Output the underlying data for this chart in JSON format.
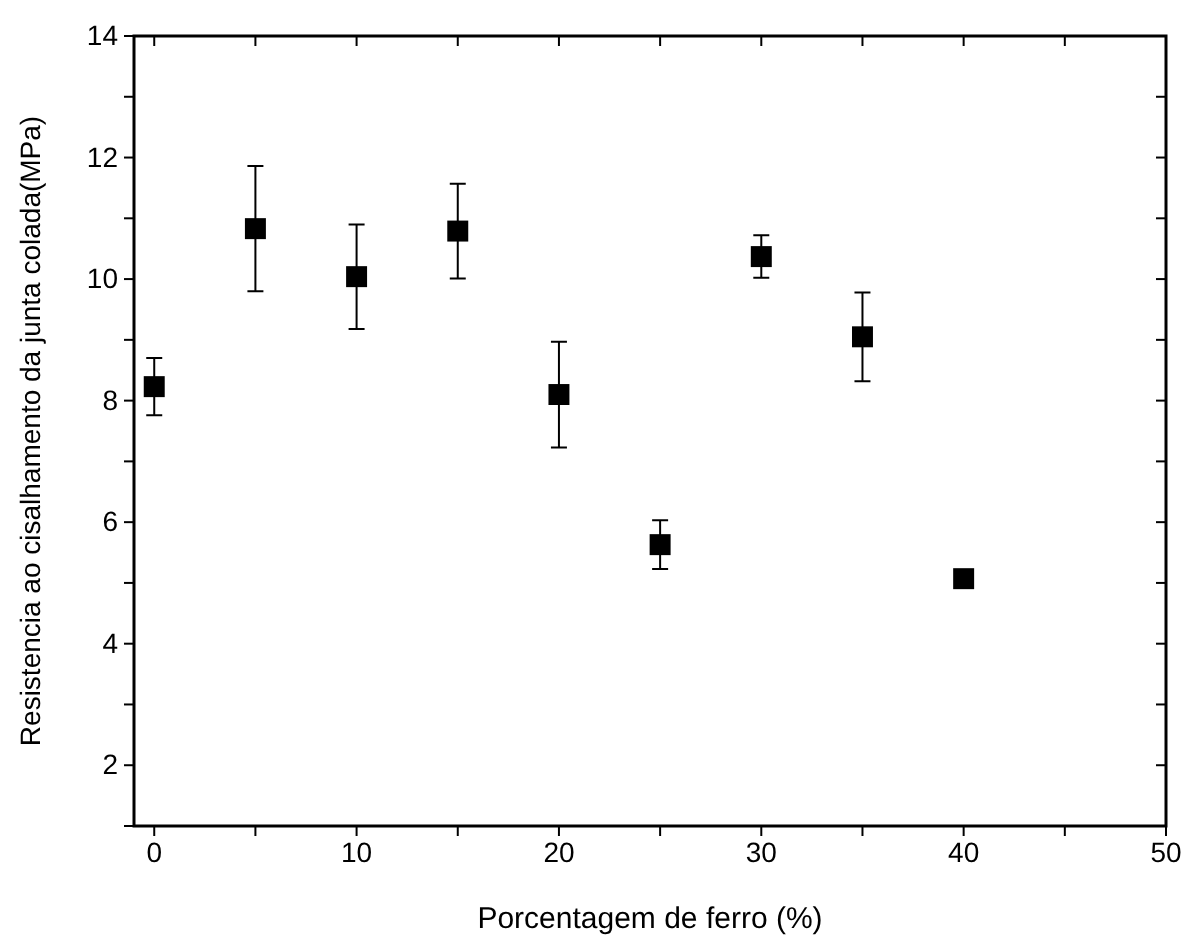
{
  "chart_data": {
    "type": "scatter",
    "xlabel": "Porcentagem de ferro (%)",
    "ylabel": "Resistencia ao cisalhamento da junta colada(MPa)",
    "x": [
      0,
      5,
      10,
      15,
      20,
      25,
      30,
      35,
      40
    ],
    "series": [
      {
        "color": "#000000",
        "values": [
          8.23,
          10.83,
          10.04,
          10.79,
          8.1,
          5.63,
          10.37,
          9.05,
          5.07
        ],
        "errors": [
          0.47,
          1.03,
          0.86,
          0.78,
          0.87,
          0.4,
          0.35,
          0.73,
          null
        ]
      }
    ],
    "marker": "square",
    "xlim": [
      -1,
      50
    ],
    "xticks": [
      0,
      {
        "value": 5,
        "label": null
      },
      10,
      {
        "value": 15,
        "label": null
      },
      20,
      {
        "value": 25,
        "label": null
      },
      30,
      {
        "value": 35,
        "label": null
      },
      40,
      {
        "value": 45,
        "label": null
      },
      50
    ],
    "ylim": [
      1,
      14
    ],
    "yticks": [
      {
        "value": 1,
        "label": null
      },
      2,
      {
        "value": 3,
        "label": null
      },
      4,
      {
        "value": 5,
        "label": null
      },
      6,
      {
        "value": 7,
        "label": null
      },
      8,
      {
        "value": 9,
        "label": null
      },
      10,
      {
        "value": 11,
        "label": null
      },
      12,
      {
        "value": 13,
        "label": null
      },
      14
    ],
    "grid": false
  }
}
